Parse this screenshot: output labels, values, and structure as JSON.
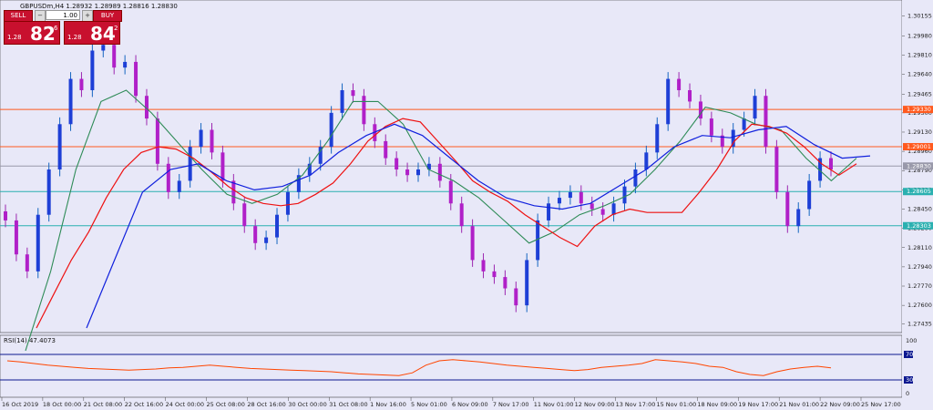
{
  "header": {
    "symbol": "GBPUSDm,H4",
    "ohlc": "1.28932 1.28989 1.28816 1.28830"
  },
  "trade_panel": {
    "sell_label": "SELL",
    "buy_label": "BUY",
    "lot": "1.00",
    "sell_small": "1.28",
    "sell_big": "82",
    "sell_sup": "6",
    "buy_small": "1.28",
    "buy_big": "84",
    "buy_sup": "2"
  },
  "price_axis": [
    "1.30155",
    "1.29980",
    "1.29810",
    "1.29640",
    "1.29465",
    "1.29300",
    "1.29130",
    "1.28960",
    "1.28790",
    "1.28620",
    "1.28450",
    "1.28280",
    "1.28110",
    "1.27940",
    "1.27770",
    "1.27600",
    "1.27435"
  ],
  "hlines": [
    {
      "price": "1.29330",
      "color": "#ff5a1f"
    },
    {
      "price": "1.29001",
      "color": "#ff5a1f"
    },
    {
      "price": "1.28830",
      "color": "#9999aa"
    },
    {
      "price": "1.28605",
      "color": "#2ab0b0"
    },
    {
      "price": "1.28303",
      "color": "#2ab0b0"
    }
  ],
  "rsi": {
    "label": "RSI(14) 47.4073",
    "levels": [
      "100",
      "70",
      "30",
      "0"
    ]
  },
  "time_axis": [
    "16 Oct 2019",
    "18 Oct 00:00",
    "21 Oct 08:00",
    "22 Oct 16:00",
    "24 Oct 00:00",
    "25 Oct 08:00",
    "28 Oct 16:00",
    "30 Oct 00:00",
    "31 Oct 08:00",
    "1 Nov 16:00",
    "5 Nov 01:00",
    "6 Nov 09:00",
    "7 Nov 17:00",
    "11 Nov 01:00",
    "12 Nov 09:00",
    "13 Nov 17:00",
    "15 Nov 01:00",
    "18 Nov 09:00",
    "19 Nov 17:00",
    "21 Nov 01:00",
    "22 Nov 09:00",
    "25 Nov 17:00"
  ],
  "chart_data": {
    "type": "candlestick",
    "symbol": "GBPUSDm,H4",
    "ylim": [
      1.274,
      1.302
    ],
    "closes": [
      1.2835,
      1.2805,
      1.279,
      1.284,
      1.288,
      1.292,
      1.296,
      1.295,
      1.2985,
      1.299,
      1.297,
      1.2975,
      1.2945,
      1.2925,
      1.2885,
      1.286,
      1.287,
      1.29,
      1.2915,
      1.2895,
      1.287,
      1.285,
      1.283,
      1.2815,
      1.282,
      1.284,
      1.286,
      1.2875,
      1.2885,
      1.29,
      1.293,
      1.295,
      1.2945,
      1.292,
      1.2905,
      1.289,
      1.288,
      1.2875,
      1.288,
      1.2885,
      1.287,
      1.285,
      1.283,
      1.28,
      1.279,
      1.2785,
      1.2775,
      1.276,
      1.28,
      1.2835,
      1.285,
      1.2855,
      1.286,
      1.285,
      1.2845,
      1.284,
      1.285,
      1.2865,
      1.288,
      1.2895,
      1.292,
      1.296,
      1.295,
      1.294,
      1.2925,
      1.291,
      1.29,
      1.2915,
      1.2925,
      1.2945,
      1.29,
      1.286,
      1.283,
      1.2845,
      1.287,
      1.289,
      1.288
    ],
    "ma_red": [
      1.274,
      1.277,
      1.28,
      1.2825,
      1.2855,
      1.288,
      1.2895,
      1.29,
      1.2898,
      1.289,
      1.2878,
      1.2865,
      1.2855,
      1.285,
      1.2848,
      1.285,
      1.2858,
      1.2868,
      1.2885,
      1.2905,
      1.2918,
      1.2925,
      1.2922,
      1.2905,
      1.2888,
      1.287,
      1.286,
      1.2852,
      1.284,
      1.283,
      1.282,
      1.2812,
      1.283,
      1.284,
      1.2845,
      1.2842,
      1.2842,
      1.2842,
      1.286,
      1.288,
      1.2905,
      1.292,
      1.2918,
      1.2912,
      1.29,
      1.2885,
      1.2875,
      1.2885
    ],
    "ma_green": [
      1.272,
      1.279,
      1.288,
      1.294,
      1.295,
      1.293,
      1.2905,
      1.288,
      1.2858,
      1.285,
      1.2858,
      1.2875,
      1.2905,
      1.294,
      1.294,
      1.292,
      1.288,
      1.287,
      1.2855,
      1.2835,
      1.2815,
      1.2825,
      1.284,
      1.2848,
      1.2858,
      1.288,
      1.2905,
      1.2935,
      1.293,
      1.292,
      1.2915,
      1.289,
      1.287,
      1.289
    ],
    "ma_blue": [
      1.274,
      1.28,
      1.286,
      1.288,
      1.2885,
      1.287,
      1.2862,
      1.2865,
      1.2875,
      1.2895,
      1.291,
      1.292,
      1.291,
      1.289,
      1.287,
      1.2855,
      1.2848,
      1.2845,
      1.285,
      1.2865,
      1.288,
      1.29,
      1.291,
      1.2908,
      1.2915,
      1.2918,
      1.2902,
      1.289,
      1.2892
    ],
    "rsi_values": [
      60,
      58,
      55,
      52,
      50,
      48,
      46,
      45,
      44,
      43,
      44,
      45,
      47,
      48,
      50,
      52,
      50,
      48,
      46,
      45,
      44,
      43,
      42,
      41,
      40,
      38,
      36,
      35,
      34,
      33,
      38,
      52,
      60,
      62,
      60,
      58,
      55,
      52,
      50,
      48,
      46,
      44,
      42,
      44,
      48,
      50,
      52,
      55,
      62,
      60,
      58,
      55,
      50,
      48,
      40,
      35,
      33,
      40,
      45,
      48,
      50,
      47
    ],
    "rsi_ylim": [
      0,
      100
    ],
    "rsi_levels": [
      70,
      30
    ]
  }
}
